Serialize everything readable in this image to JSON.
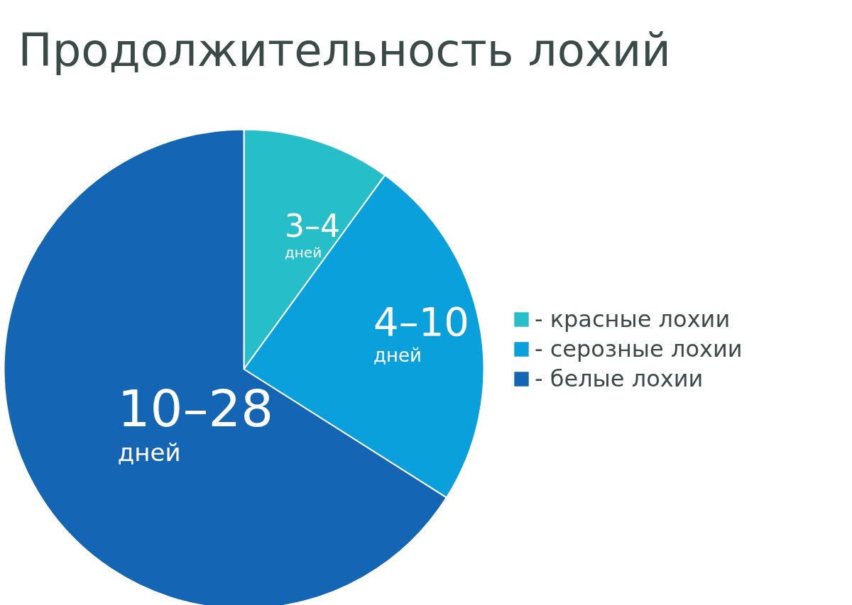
{
  "chart_data": {
    "type": "pie",
    "title": "Продолжительность лохий",
    "categories": [
      "- красные лохии",
      "- серозные лохии",
      "- белые лохии"
    ],
    "values": [
      10,
      24,
      66
    ],
    "colors": [
      "#26bfc9",
      "#0aa0dc",
      "#1565b5"
    ],
    "annotations": [
      "3–4\nдней",
      "4–10\nдней",
      "10–28\nдней"
    ],
    "legend": "right"
  }
}
